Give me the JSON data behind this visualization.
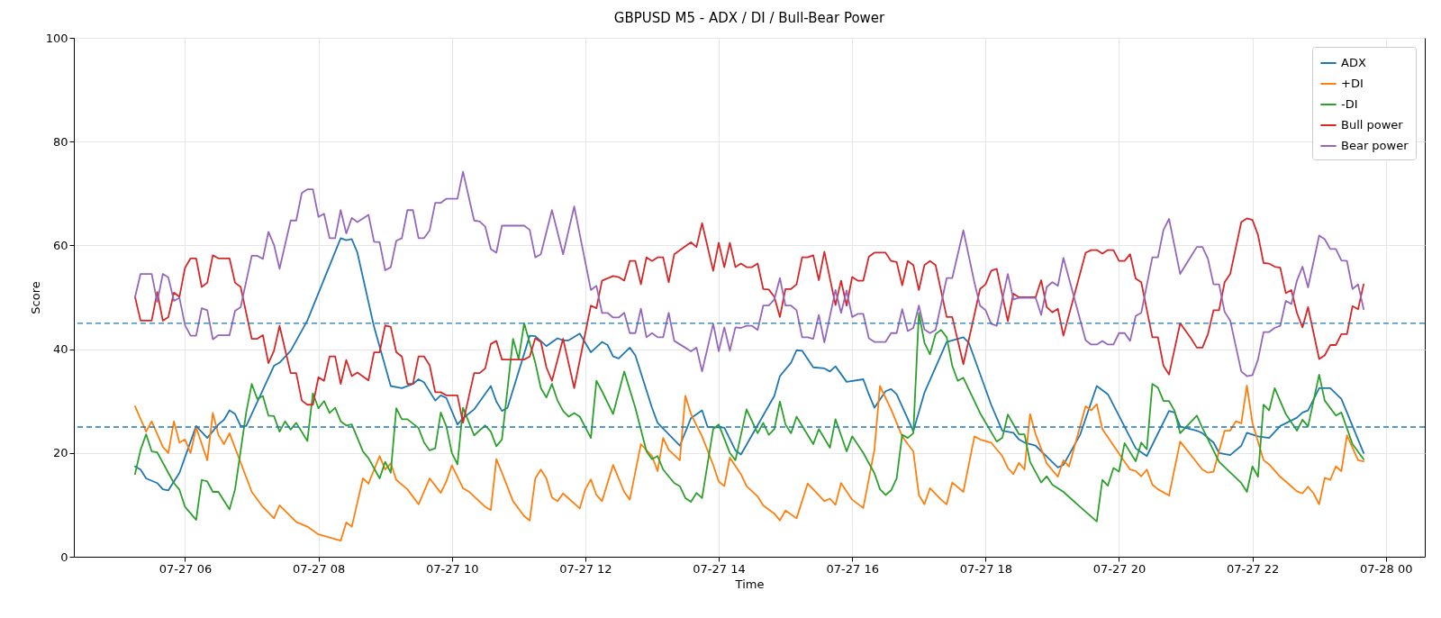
{
  "chart_data": {
    "type": "line",
    "title": "GBPUSD M5 - ADX / DI / Bull-Bear Power",
    "xlabel": "Time",
    "ylabel": "Score",
    "xlim": [
      "--07-27T04:20",
      "--07-28T00:35"
    ],
    "xticks": [
      {
        "value": "--07-27T06:00",
        "label": "07-27 06"
      },
      {
        "value": "--07-27T08:00",
        "label": "07-27 08"
      },
      {
        "value": "--07-27T10:00",
        "label": "07-27 10"
      },
      {
        "value": "--07-27T12:00",
        "label": "07-27 12"
      },
      {
        "value": "--07-27T14:00",
        "label": "07-27 14"
      },
      {
        "value": "--07-27T16:00",
        "label": "07-27 16"
      },
      {
        "value": "--07-27T18:00",
        "label": "07-27 18"
      },
      {
        "value": "--07-27T20:00",
        "label": "07-27 20"
      },
      {
        "value": "--07-27T22:00",
        "label": "07-27 22"
      },
      {
        "value": "--07-28T00:00",
        "label": "07-28 00"
      }
    ],
    "ylim": [
      0,
      100
    ],
    "yticks": [
      0,
      20,
      40,
      60,
      80,
      100
    ],
    "grid": true,
    "legend": "top right",
    "ref_lines": [
      {
        "axis": "y",
        "value": 45,
        "color": "#1f77b4",
        "line_style": "dashed"
      },
      {
        "axis": "y",
        "value": 25,
        "color": "#1f77b4",
        "line_style": "dashed"
      }
    ],
    "series": [
      {
        "name": "ADX",
        "color": "#1f77b4",
        "x": [
          "--07-27T05:15",
          "--07-27T05:20",
          "--07-27T05:25",
          "--07-27T05:35",
          "--07-27T05:40",
          "--07-27T05:45",
          "--07-27T05:55",
          "--07-27T06:10",
          "--07-27T06:20",
          "--07-27T06:30",
          "--07-27T06:35",
          "--07-27T06:40",
          "--07-27T06:45",
          "--07-27T06:50",
          "--07-27T06:55",
          "--07-27T07:20",
          "--07-27T07:25",
          "--07-27T07:35",
          "--07-27T07:50",
          "--07-27T08:20",
          "--07-27T08:25",
          "--07-27T08:30",
          "--07-27T08:35",
          "--07-27T08:50",
          "--07-27T09:05",
          "--07-27T09:15",
          "--07-27T09:25",
          "--07-27T09:30",
          "--07-27T09:35",
          "--07-27T09:45",
          "--07-27T09:50",
          "--07-27T09:55",
          "--07-27T10:05",
          "--07-27T10:10",
          "--07-27T10:20",
          "--07-27T10:35",
          "--07-27T10:40",
          "--07-27T10:45",
          "--07-27T10:50",
          "--07-27T11:10",
          "--07-27T11:15",
          "--07-27T11:25",
          "--07-27T11:35",
          "--07-27T11:40",
          "--07-27T11:45",
          "--07-27T11:55",
          "--07-27T12:05",
          "--07-27T12:15",
          "--07-27T12:20",
          "--07-27T12:25",
          "--07-27T12:30",
          "--07-27T12:40",
          "--07-27T12:45",
          "--07-27T13:00",
          "--07-27T13:05",
          "--07-27T13:25",
          "--07-27T13:35",
          "--07-27T13:45",
          "--07-27T13:50",
          "--07-27T14:05",
          "--07-27T14:15",
          "--07-27T14:20",
          "--07-27T14:50",
          "--07-27T14:55",
          "--07-27T15:05",
          "--07-27T15:10",
          "--07-27T15:15",
          "--07-27T15:25",
          "--07-27T15:35",
          "--07-27T15:40",
          "--07-27T15:45",
          "--07-27T15:55",
          "--07-27T16:10",
          "--07-27T16:15",
          "--07-27T16:20",
          "--07-27T16:30",
          "--07-27T16:35",
          "--07-27T16:40",
          "--07-27T16:55",
          "--07-27T17:05",
          "--07-27T17:25",
          "--07-27T17:40",
          "--07-27T17:45",
          "--07-27T18:05",
          "--07-27T18:15",
          "--07-27T18:25",
          "--07-27T18:30",
          "--07-27T18:35",
          "--07-27T18:45",
          "--07-27T19:05",
          "--07-27T19:10",
          "--07-27T19:25",
          "--07-27T19:40",
          "--07-27T19:50",
          "--07-27T20:15",
          "--07-27T20:25",
          "--07-27T20:45",
          "--07-27T20:50",
          "--07-27T20:55",
          "--07-27T21:10",
          "--07-27T21:15",
          "--07-27T21:25",
          "--07-27T21:30",
          "--07-27T21:40",
          "--07-27T21:50",
          "--07-27T21:55",
          "--07-27T22:05",
          "--07-27T22:15",
          "--07-27T22:25",
          "--07-27T22:40",
          "--07-27T22:45",
          "--07-27T22:50",
          "--07-27T23:00",
          "--07-27T23:10",
          "--07-27T23:20",
          "--07-27T23:40"
        ],
        "values": [
          17.4,
          16.8,
          15.1,
          14.2,
          13.0,
          12.8,
          16.2,
          25.2,
          22.9,
          25.5,
          26.4,
          28.2,
          27.5,
          25.2,
          25.2,
          36.8,
          37.4,
          39.7,
          45.5,
          61.4,
          61.0,
          61.2,
          58.6,
          44.3,
          32.9,
          32.5,
          33.3,
          34.2,
          33.6,
          30.1,
          31.1,
          30.6,
          25.5,
          26.7,
          28.4,
          32.9,
          29.9,
          28.1,
          28.7,
          42.6,
          42.5,
          40.6,
          42.1,
          41.7,
          41.7,
          43.0,
          39.4,
          41.4,
          40.8,
          38.6,
          38.2,
          40.3,
          38.8,
          28.7,
          25.8,
          21.4,
          26.7,
          28.2,
          25.0,
          24.9,
          20.5,
          19.7,
          31.0,
          34.8,
          37.4,
          39.8,
          39.7,
          36.5,
          36.3,
          35.7,
          36.7,
          33.7,
          34.2,
          31.3,
          28.7,
          31.9,
          32.3,
          31.3,
          24.2,
          31.6,
          41.4,
          42.3,
          41.2,
          29.3,
          24.3,
          23.9,
          22.6,
          22.0,
          21.4,
          17.2,
          17.7,
          23.5,
          32.9,
          31.3,
          20.9,
          19.4,
          28.1,
          27.8,
          25.1,
          24.3,
          23.8,
          22.0,
          20.0,
          19.6,
          21.4,
          23.9,
          23.2,
          22.9,
          25.2,
          26.8,
          27.8,
          28.2,
          32.5,
          32.5,
          30.4,
          20.0
        ]
      },
      {
        "name": "+DI",
        "color": "#ff7f0e",
        "x": [
          "--07-27T05:15",
          "--07-27T05:25",
          "--07-27T05:30",
          "--07-27T05:40",
          "--07-27T05:45",
          "--07-27T05:50",
          "--07-27T05:55",
          "--07-27T06:00",
          "--07-27T06:05",
          "--07-27T06:10",
          "--07-27T06:20",
          "--07-27T06:25",
          "--07-27T06:30",
          "--07-27T06:35",
          "--07-27T06:40",
          "--07-27T07:00",
          "--07-27T07:10",
          "--07-27T07:20",
          "--07-27T07:25",
          "--07-27T07:40",
          "--07-27T07:50",
          "--07-27T08:00",
          "--07-27T08:20",
          "--07-27T08:25",
          "--07-27T08:30",
          "--07-27T08:40",
          "--07-27T08:45",
          "--07-27T08:55",
          "--07-27T09:00",
          "--07-27T09:05",
          "--07-27T09:10",
          "--07-27T09:20",
          "--07-27T09:30",
          "--07-27T09:40",
          "--07-27T09:50",
          "--07-27T09:55",
          "--07-27T10:00",
          "--07-27T10:10",
          "--07-27T10:15",
          "--07-27T10:30",
          "--07-27T10:35",
          "--07-27T10:40",
          "--07-27T10:45",
          "--07-27T10:55",
          "--07-27T11:05",
          "--07-27T11:10",
          "--07-27T11:15",
          "--07-27T11:20",
          "--07-27T11:25",
          "--07-27T11:30",
          "--07-27T11:35",
          "--07-27T11:40",
          "--07-27T11:55",
          "--07-27T12:00",
          "--07-27T12:05",
          "--07-27T12:10",
          "--07-27T12:15",
          "--07-27T12:25",
          "--07-27T12:35",
          "--07-27T12:40",
          "--07-27T12:50",
          "--07-27T13:00",
          "--07-27T13:05",
          "--07-27T13:10",
          "--07-27T13:15",
          "--07-27T13:25",
          "--07-27T13:30",
          "--07-27T13:35",
          "--07-27T13:45",
          "--07-27T13:55",
          "--07-27T14:00",
          "--07-27T14:05",
          "--07-27T14:10",
          "--07-27T14:20",
          "--07-27T14:25",
          "--07-27T14:35",
          "--07-27T14:40",
          "--07-27T14:50",
          "--07-27T14:55",
          "--07-27T15:00",
          "--07-27T15:10",
          "--07-27T15:20",
          "--07-27T15:25",
          "--07-27T15:35",
          "--07-27T15:40",
          "--07-27T15:45",
          "--07-27T15:50",
          "--07-27T16:00",
          "--07-27T16:10",
          "--07-27T16:20",
          "--07-27T16:25",
          "--07-27T16:35",
          "--07-27T16:45",
          "--07-27T16:50",
          "--07-27T16:55",
          "--07-27T17:00",
          "--07-27T17:05",
          "--07-27T17:10",
          "--07-27T17:20",
          "--07-27T17:25",
          "--07-27T17:30",
          "--07-27T17:40",
          "--07-27T17:50",
          "--07-27T17:55",
          "--07-27T18:05",
          "--07-27T18:15",
          "--07-27T18:20",
          "--07-27T18:25",
          "--07-27T18:30",
          "--07-27T18:35",
          "--07-27T18:40",
          "--07-27T18:45",
          "--07-27T18:55",
          "--07-27T19:05",
          "--07-27T19:10",
          "--07-27T19:15",
          "--07-27T19:30",
          "--07-27T19:35",
          "--07-27T19:40",
          "--07-27T19:45",
          "--07-27T20:05",
          "--07-27T20:10",
          "--07-27T20:15",
          "--07-27T20:20",
          "--07-27T20:25",
          "--07-27T20:30",
          "--07-27T20:35",
          "--07-27T20:45",
          "--07-27T20:55",
          "--07-27T21:15",
          "--07-27T21:20",
          "--07-27T21:25",
          "--07-27T21:35",
          "--07-27T21:40",
          "--07-27T21:45",
          "--07-27T21:50",
          "--07-27T21:55",
          "--07-27T22:00",
          "--07-27T22:10",
          "--07-27T22:15",
          "--07-27T22:25",
          "--07-27T22:30",
          "--07-27T22:40",
          "--07-27T22:45",
          "--07-27T22:50",
          "--07-27T22:55",
          "--07-27T23:00",
          "--07-27T23:05",
          "--07-27T23:10",
          "--07-27T23:15",
          "--07-27T23:20",
          "--07-27T23:25",
          "--07-27T23:35",
          "--07-27T23:40"
        ],
        "values": [
          29.0,
          24.1,
          26.1,
          21.2,
          20.0,
          26.1,
          22.0,
          22.6,
          20.0,
          24.9,
          18.6,
          27.7,
          23.5,
          21.7,
          23.8,
          12.5,
          9.6,
          7.4,
          9.9,
          6.7,
          5.8,
          4.3,
          3.1,
          6.6,
          5.8,
          15.1,
          14.1,
          19.4,
          16.8,
          18.0,
          14.8,
          13.0,
          10.1,
          15.1,
          12.3,
          14.5,
          17.6,
          13.2,
          12.6,
          9.6,
          9.0,
          18.8,
          16.2,
          10.7,
          7.8,
          7.0,
          15.1,
          16.8,
          15.1,
          11.4,
          10.7,
          12.2,
          9.3,
          13.0,
          14.9,
          11.9,
          10.7,
          17.7,
          12.5,
          11.0,
          21.7,
          19.4,
          16.5,
          22.9,
          20.6,
          18.6,
          31.0,
          27.5,
          23.2,
          17.7,
          14.5,
          13.6,
          19.1,
          15.9,
          13.6,
          11.6,
          9.9,
          8.3,
          7.0,
          8.9,
          7.4,
          14.1,
          13.0,
          10.7,
          11.2,
          10.0,
          14.2,
          11.0,
          9.4,
          20.6,
          32.9,
          28.4,
          23.2,
          21.7,
          20.3,
          11.9,
          10.1,
          13.2,
          11.0,
          10.1,
          14.3,
          12.5,
          23.2,
          22.6,
          22.0,
          19.4,
          17.1,
          15.9,
          18.1,
          16.8,
          27.5,
          23.6,
          18.0,
          15.4,
          18.6,
          17.4,
          29.0,
          28.2,
          29.4,
          24.6,
          18.3,
          16.8,
          16.5,
          15.5,
          16.8,
          13.9,
          13.0,
          11.8,
          22.2,
          16.8,
          16.2,
          16.4,
          24.3,
          24.3,
          26.1,
          25.7,
          33.0,
          25.8,
          18.6,
          17.8,
          15.4,
          14.5,
          12.6,
          12.2,
          13.5,
          12.2,
          10.1,
          15.2,
          14.8,
          17.4,
          16.5,
          23.4,
          18.6,
          18.4
        ]
      },
      {
        "name": "-DI",
        "color": "#2ca02c",
        "x": [
          "--07-27T05:15",
          "--07-27T05:20",
          "--07-27T05:25",
          "--07-27T05:30",
          "--07-27T05:35",
          "--07-27T05:50",
          "--07-27T05:55",
          "--07-27T06:00",
          "--07-27T06:10",
          "--07-27T06:15",
          "--07-27T06:20",
          "--07-27T06:25",
          "--07-27T06:30",
          "--07-27T06:40",
          "--07-27T06:45",
          "--07-27T06:55",
          "--07-27T07:00",
          "--07-27T07:05",
          "--07-27T07:10",
          "--07-27T07:15",
          "--07-27T07:20",
          "--07-27T07:25",
          "--07-27T07:30",
          "--07-27T07:35",
          "--07-27T07:40",
          "--07-27T07:50",
          "--07-27T07:55",
          "--07-27T08:00",
          "--07-27T08:05",
          "--07-27T08:10",
          "--07-27T08:15",
          "--07-27T08:20",
          "--07-27T08:25",
          "--07-27T08:30",
          "--07-27T08:40",
          "--07-27T08:45",
          "--07-27T08:55",
          "--07-27T09:00",
          "--07-27T09:05",
          "--07-27T09:10",
          "--07-27T09:15",
          "--07-27T09:20",
          "--07-27T09:30",
          "--07-27T09:35",
          "--07-27T09:40",
          "--07-27T09:45",
          "--07-27T09:50",
          "--07-27T09:55",
          "--07-27T10:00",
          "--07-27T10:05",
          "--07-27T10:10",
          "--07-27T10:20",
          "--07-27T10:30",
          "--07-27T10:35",
          "--07-27T10:40",
          "--07-27T10:45",
          "--07-27T10:55",
          "--07-27T11:00",
          "--07-27T11:05",
          "--07-27T11:15",
          "--07-27T11:20",
          "--07-27T11:25",
          "--07-27T11:30",
          "--07-27T11:35",
          "--07-27T11:40",
          "--07-27T11:45",
          "--07-27T11:50",
          "--07-27T11:55",
          "--07-27T12:05",
          "--07-27T12:10",
          "--07-27T12:15",
          "--07-27T12:25",
          "--07-27T12:35",
          "--07-27T12:45",
          "--07-27T12:55",
          "--07-27T13:00",
          "--07-27T13:05",
          "--07-27T13:10",
          "--07-27T13:20",
          "--07-27T13:25",
          "--07-27T13:30",
          "--07-27T13:35",
          "--07-27T13:40",
          "--07-27T13:45",
          "--07-27T13:55",
          "--07-27T14:00",
          "--07-27T14:10",
          "--07-27T14:15",
          "--07-27T14:25",
          "--07-27T14:35",
          "--07-27T14:40",
          "--07-27T14:45",
          "--07-27T14:50",
          "--07-27T14:55",
          "--07-27T15:00",
          "--07-27T15:05",
          "--07-27T15:10",
          "--07-27T15:25",
          "--07-27T15:30",
          "--07-27T15:40",
          "--07-27T15:45",
          "--07-27T15:55",
          "--07-27T16:00",
          "--07-27T16:10",
          "--07-27T16:20",
          "--07-27T16:25",
          "--07-27T16:30",
          "--07-27T16:35",
          "--07-27T16:40",
          "--07-27T16:45",
          "--07-27T16:50",
          "--07-27T16:55",
          "--07-27T17:00",
          "--07-27T17:05",
          "--07-27T17:10",
          "--07-27T17:15",
          "--07-27T17:20",
          "--07-27T17:25",
          "--07-27T17:30",
          "--07-27T17:35",
          "--07-27T17:40",
          "--07-27T17:55",
          "--07-27T18:10",
          "--07-27T18:15",
          "--07-27T18:20",
          "--07-27T18:30",
          "--07-27T18:35",
          "--07-27T18:40",
          "--07-27T18:50",
          "--07-27T18:55",
          "--07-27T19:00",
          "--07-27T19:10",
          "--07-27T19:25",
          "--07-27T19:40",
          "--07-27T19:45",
          "--07-27T19:50",
          "--07-27T19:55",
          "--07-27T20:00",
          "--07-27T20:05",
          "--07-27T20:15",
          "--07-27T20:20",
          "--07-27T20:25",
          "--07-27T20:30",
          "--07-27T20:35",
          "--07-27T20:40",
          "--07-27T20:45",
          "--07-27T20:50",
          "--07-27T20:55",
          "--07-27T21:10",
          "--07-27T21:15",
          "--07-27T21:30",
          "--07-27T21:50",
          "--07-27T21:55",
          "--07-27T22:00",
          "--07-27T22:05",
          "--07-27T22:10",
          "--07-27T22:15",
          "--07-27T22:20",
          "--07-27T22:30",
          "--07-27T22:40",
          "--07-27T22:45",
          "--07-27T22:50",
          "--07-27T23:00",
          "--07-27T23:05",
          "--07-27T23:15",
          "--07-27T23:20",
          "--07-27T23:30",
          "--07-27T23:40"
        ],
        "values": [
          15.9,
          20.6,
          23.6,
          20.3,
          20.1,
          14.2,
          12.9,
          9.6,
          7.1,
          14.8,
          14.5,
          12.5,
          12.5,
          9.1,
          13.0,
          27.8,
          33.3,
          30.4,
          31.0,
          27.2,
          27.1,
          24.1,
          26.1,
          24.5,
          25.8,
          22.3,
          31.5,
          28.6,
          30.0,
          27.7,
          28.7,
          26.1,
          25.3,
          25.5,
          20.3,
          19.0,
          15.1,
          18.3,
          16.2,
          28.6,
          26.5,
          26.5,
          24.8,
          22.0,
          20.5,
          20.9,
          27.8,
          25.1,
          20.0,
          17.8,
          28.7,
          23.4,
          25.3,
          24.1,
          21.3,
          22.6,
          42.0,
          38.1,
          45.0,
          37.4,
          32.5,
          30.7,
          33.3,
          30.1,
          28.1,
          27.0,
          27.7,
          27.0,
          22.9,
          33.9,
          31.9,
          27.5,
          35.7,
          28.7,
          20.3,
          18.8,
          19.4,
          16.8,
          14.2,
          13.6,
          11.3,
          10.6,
          12.3,
          11.3,
          24.6,
          25.5,
          20.0,
          18.6,
          28.4,
          23.8,
          25.8,
          23.5,
          24.6,
          29.9,
          25.5,
          23.8,
          27.0,
          21.7,
          24.6,
          21.0,
          26.5,
          20.3,
          23.2,
          20.0,
          16.1,
          13.0,
          11.9,
          12.8,
          15.1,
          23.5,
          22.9,
          23.8,
          47.0,
          41.2,
          39.0,
          42.9,
          43.7,
          42.3,
          36.8,
          33.9,
          34.5,
          27.7,
          22.2,
          22.9,
          27.4,
          23.6,
          23.6,
          18.3,
          14.3,
          15.5,
          13.9,
          12.5,
          9.6,
          6.8,
          14.8,
          13.7,
          17.1,
          16.4,
          21.9,
          18.4,
          22.0,
          20.7,
          33.3,
          32.6,
          30.0,
          30.0,
          28.1,
          23.8,
          27.2,
          24.8,
          18.3,
          14.2,
          12.5,
          17.4,
          15.4,
          29.3,
          28.2,
          32.5,
          27.5,
          24.3,
          26.4,
          25.1,
          35.1,
          30.1,
          27.2,
          27.8,
          21.7,
          18.8
        ]
      },
      {
        "name": "Bull power",
        "color": "#d62728",
        "x": [
          "--07-27T05:15",
          "--07-27T05:20",
          "--07-27T05:30",
          "--07-27T05:35",
          "--07-27T05:40",
          "--07-27T05:45",
          "--07-27T05:50",
          "--07-27T05:55",
          "--07-27T06:00",
          "--07-27T06:05",
          "--07-27T06:10",
          "--07-27T06:15",
          "--07-27T06:20",
          "--07-27T06:25",
          "--07-27T06:30",
          "--07-27T06:40",
          "--07-27T06:45",
          "--07-27T06:50",
          "--07-27T07:00",
          "--07-27T07:05",
          "--07-27T07:10",
          "--07-27T07:15",
          "--07-27T07:20",
          "--07-27T07:25",
          "--07-27T07:35",
          "--07-27T07:40",
          "--07-27T07:45",
          "--07-27T07:50",
          "--07-27T07:55",
          "--07-27T08:00",
          "--07-27T08:05",
          "--07-27T08:10",
          "--07-27T08:15",
          "--07-27T08:20",
          "--07-27T08:25",
          "--07-27T08:30",
          "--07-27T08:35",
          "--07-27T08:45",
          "--07-27T08:50",
          "--07-27T08:55",
          "--07-27T09:00",
          "--07-27T09:05",
          "--07-27T09:10",
          "--07-27T09:15",
          "--07-27T09:20",
          "--07-27T09:25",
          "--07-27T09:30",
          "--07-27T09:35",
          "--07-27T09:40",
          "--07-27T09:45",
          "--07-27T09:50",
          "--07-27T09:55",
          "--07-27T10:05",
          "--07-27T10:10",
          "--07-27T10:20",
          "--07-27T10:25",
          "--07-27T10:30",
          "--07-27T10:35",
          "--07-27T10:40",
          "--07-27T10:45",
          "--07-27T10:55",
          "--07-27T11:05",
          "--07-27T11:10",
          "--07-27T11:15",
          "--07-27T11:20",
          "--07-27T11:25",
          "--07-27T11:30",
          "--07-27T11:40",
          "--07-27T11:50",
          "--07-27T12:05",
          "--07-27T12:10",
          "--07-27T12:15",
          "--07-27T12:25",
          "--07-27T12:30",
          "--07-27T12:35",
          "--07-27T12:40",
          "--07-27T12:45",
          "--07-27T12:50",
          "--07-27T12:55",
          "--07-27T13:00",
          "--07-27T13:05",
          "--07-27T13:10",
          "--07-27T13:15",
          "--07-27T13:20",
          "--07-27T13:35",
          "--07-27T13:40",
          "--07-27T13:45",
          "--07-27T13:55",
          "--07-27T14:00",
          "--07-27T14:05",
          "--07-27T14:10",
          "--07-27T14:15",
          "--07-27T14:20",
          "--07-27T14:25",
          "--07-27T14:30",
          "--07-27T14:35",
          "--07-27T14:40",
          "--07-27T14:45",
          "--07-27T14:50",
          "--07-27T14:55",
          "--07-27T15:00",
          "--07-27T15:05",
          "--07-27T15:10",
          "--07-27T15:15",
          "--07-27T15:20",
          "--07-27T15:25",
          "--07-27T15:30",
          "--07-27T15:35",
          "--07-27T15:45",
          "--07-27T15:50",
          "--07-27T15:55",
          "--07-27T16:00",
          "--07-27T16:05",
          "--07-27T16:10",
          "--07-27T16:15",
          "--07-27T16:20",
          "--07-27T16:30",
          "--07-27T16:35",
          "--07-27T16:40",
          "--07-27T16:45",
          "--07-27T16:50",
          "--07-27T16:55",
          "--07-27T17:00",
          "--07-27T17:05",
          "--07-27T17:10",
          "--07-27T17:15",
          "--07-27T17:25",
          "--07-27T17:30",
          "--07-27T17:40",
          "--07-27T17:50",
          "--07-27T17:55",
          "--07-27T18:00",
          "--07-27T18:05",
          "--07-27T18:10",
          "--07-27T18:20",
          "--07-27T18:25",
          "--07-27T18:30",
          "--07-27T18:45",
          "--07-27T18:50",
          "--07-27T18:55",
          "--07-27T19:00",
          "--07-27T19:05",
          "--07-27T19:10",
          "--07-27T19:30",
          "--07-27T19:35",
          "--07-27T19:40",
          "--07-27T19:45",
          "--07-27T19:50",
          "--07-27T19:55",
          "--07-27T20:00",
          "--07-27T20:05",
          "--07-27T20:10",
          "--07-27T20:15",
          "--07-27T20:20",
          "--07-27T20:30",
          "--07-27T20:35",
          "--07-27T20:40",
          "--07-27T20:45",
          "--07-27T20:55",
          "--07-27T21:05",
          "--07-27T21:10",
          "--07-27T21:15",
          "--07-27T21:20",
          "--07-27T21:25",
          "--07-27T21:30",
          "--07-27T21:35",
          "--07-27T21:40",
          "--07-27T21:50",
          "--07-27T21:55",
          "--07-27T22:00",
          "--07-27T22:05",
          "--07-27T22:10",
          "--07-27T22:15",
          "--07-27T22:20",
          "--07-27T22:25",
          "--07-27T22:30",
          "--07-27T22:35",
          "--07-27T22:40",
          "--07-27T22:45",
          "--07-27T22:50",
          "--07-27T23:00",
          "--07-27T23:05",
          "--07-27T23:10",
          "--07-27T23:15",
          "--07-27T23:20",
          "--07-27T23:25",
          "--07-27T23:30",
          "--07-27T23:35",
          "--07-27T23:40"
        ],
        "values": [
          50.1,
          45.5,
          45.5,
          51.0,
          45.5,
          46.2,
          50.9,
          50.1,
          55.7,
          57.5,
          57.5,
          52.0,
          52.8,
          58.1,
          57.5,
          57.5,
          52.8,
          52.0,
          42.0,
          42.0,
          42.7,
          37.3,
          39.7,
          44.5,
          35.4,
          35.4,
          30.1,
          29.3,
          29.3,
          34.6,
          33.9,
          38.6,
          38.6,
          33.3,
          37.9,
          34.8,
          35.5,
          34.0,
          39.4,
          39.4,
          44.6,
          44.3,
          39.4,
          38.6,
          33.3,
          33.3,
          38.6,
          38.6,
          36.9,
          31.7,
          31.7,
          31.1,
          31.1,
          25.8,
          35.4,
          35.4,
          36.3,
          41.0,
          41.6,
          38.0,
          38.0,
          38.0,
          38.6,
          42.1,
          41.4,
          36.5,
          33.9,
          42.0,
          32.5,
          48.4,
          47.9,
          53.2,
          54.1,
          53.9,
          53.2,
          57.0,
          57.0,
          52.5,
          57.7,
          57.0,
          57.7,
          57.7,
          52.9,
          58.3,
          60.6,
          59.7,
          64.3,
          55.1,
          60.5,
          55.8,
          60.5,
          55.8,
          56.5,
          55.8,
          55.8,
          56.5,
          51.6,
          51.5,
          50.1,
          46.2,
          51.6,
          51.6,
          52.5,
          57.7,
          57.7,
          58.1,
          53.3,
          58.8,
          48.5,
          53.2,
          48.4,
          53.9,
          53.2,
          53.2,
          57.8,
          58.6,
          58.6,
          57.0,
          56.8,
          52.3,
          57.0,
          56.2,
          51.4,
          56.2,
          57.0,
          56.2,
          46.2,
          46.2,
          37.1,
          46.7,
          51.6,
          52.5,
          55.1,
          55.5,
          45.4,
          50.7,
          50.0,
          50.0,
          53.3,
          48.1,
          47.1,
          47.8,
          42.6,
          58.6,
          59.1,
          59.1,
          58.4,
          59.1,
          59.1,
          57.0,
          57.0,
          58.3,
          53.6,
          52.9,
          42.3,
          42.3,
          36.8,
          35.1,
          45.0,
          42.0,
          40.3,
          40.3,
          42.9,
          47.5,
          47.5,
          52.9,
          54.5,
          64.5,
          65.2,
          64.9,
          62.0,
          56.6,
          56.5,
          55.9,
          55.7,
          50.8,
          51.4,
          47.0,
          44.2,
          48.1,
          38.1,
          38.8,
          40.8,
          40.8,
          42.9,
          42.9,
          48.3,
          47.7,
          52.5
        ]
      },
      {
        "name": "Bear power",
        "color": "#9467bd",
        "x": [
          "--07-27T05:15",
          "--07-27T05:20",
          "--07-27T05:30",
          "--07-27T05:35",
          "--07-27T05:40",
          "--07-27T05:45",
          "--07-27T05:50",
          "--07-27T05:55",
          "--07-27T06:00",
          "--07-27T06:05",
          "--07-27T06:10",
          "--07-27T06:15",
          "--07-27T06:20",
          "--07-27T06:25",
          "--07-27T06:30",
          "--07-27T06:40",
          "--07-27T06:45",
          "--07-27T06:50",
          "--07-27T07:00",
          "--07-27T07:05",
          "--07-27T07:10",
          "--07-27T07:15",
          "--07-27T07:20",
          "--07-27T07:25",
          "--07-27T07:35",
          "--07-27T07:40",
          "--07-27T07:45",
          "--07-27T07:50",
          "--07-27T07:55",
          "--07-27T08:00",
          "--07-27T08:05",
          "--07-27T08:10",
          "--07-27T08:15",
          "--07-27T08:20",
          "--07-27T08:25",
          "--07-27T08:30",
          "--07-27T08:35",
          "--07-27T08:45",
          "--07-27T08:50",
          "--07-27T08:55",
          "--07-27T09:00",
          "--07-27T09:05",
          "--07-27T09:10",
          "--07-27T09:15",
          "--07-27T09:20",
          "--07-27T09:25",
          "--07-27T09:30",
          "--07-27T09:35",
          "--07-27T09:40",
          "--07-27T09:45",
          "--07-27T09:50",
          "--07-27T09:55",
          "--07-27T10:05",
          "--07-27T10:10",
          "--07-27T10:20",
          "--07-27T10:25",
          "--07-27T10:30",
          "--07-27T10:35",
          "--07-27T10:40",
          "--07-27T10:45",
          "--07-27T11:05",
          "--07-27T11:10",
          "--07-27T11:15",
          "--07-27T11:20",
          "--07-27T11:30",
          "--07-27T11:40",
          "--07-27T11:50",
          "--07-27T12:05",
          "--07-27T12:10",
          "--07-27T12:15",
          "--07-27T12:20",
          "--07-27T12:25",
          "--07-27T12:30",
          "--07-27T12:35",
          "--07-27T12:40",
          "--07-27T12:45",
          "--07-27T12:50",
          "--07-27T12:55",
          "--07-27T13:00",
          "--07-27T13:05",
          "--07-27T13:10",
          "--07-27T13:15",
          "--07-27T13:20",
          "--07-27T13:35",
          "--07-27T13:40",
          "--07-27T13:45",
          "--07-27T13:55",
          "--07-27T14:00",
          "--07-27T14:05",
          "--07-27T14:10",
          "--07-27T14:15",
          "--07-27T14:20",
          "--07-27T14:25",
          "--07-27T14:30",
          "--07-27T14:35",
          "--07-27T14:40",
          "--07-27T14:45",
          "--07-27T14:50",
          "--07-27T14:55",
          "--07-27T15:00",
          "--07-27T15:05",
          "--07-27T15:10",
          "--07-27T15:15",
          "--07-27T15:20",
          "--07-27T15:25",
          "--07-27T15:30",
          "--07-27T15:35",
          "--07-27T15:45",
          "--07-27T15:50",
          "--07-27T15:55",
          "--07-27T16:00",
          "--07-27T16:05",
          "--07-27T16:10",
          "--07-27T16:15",
          "--07-27T16:20",
          "--07-27T16:30",
          "--07-27T16:35",
          "--07-27T16:40",
          "--07-27T16:45",
          "--07-27T16:50",
          "--07-27T16:55",
          "--07-27T17:00",
          "--07-27T17:05",
          "--07-27T17:10",
          "--07-27T17:15",
          "--07-27T17:25",
          "--07-27T17:30",
          "--07-27T17:40",
          "--07-27T17:50",
          "--07-27T17:55",
          "--07-27T18:00",
          "--07-27T18:05",
          "--07-27T18:10",
          "--07-27T18:20",
          "--07-27T18:25",
          "--07-27T18:30",
          "--07-27T18:45",
          "--07-27T18:50",
          "--07-27T18:55",
          "--07-27T19:00",
          "--07-27T19:05",
          "--07-27T19:10",
          "--07-27T19:30",
          "--07-27T19:35",
          "--07-27T19:40",
          "--07-27T19:45",
          "--07-27T19:50",
          "--07-27T19:55",
          "--07-27T20:00",
          "--07-27T20:05",
          "--07-27T20:10",
          "--07-27T20:15",
          "--07-27T20:20",
          "--07-27T20:30",
          "--07-27T20:35",
          "--07-27T20:40",
          "--07-27T20:45",
          "--07-27T20:55",
          "--07-27T21:05",
          "--07-27T21:10",
          "--07-27T21:15",
          "--07-27T21:20",
          "--07-27T21:25",
          "--07-27T21:30",
          "--07-27T21:35",
          "--07-27T21:40",
          "--07-27T21:50",
          "--07-27T21:55",
          "--07-27T22:00",
          "--07-27T22:05",
          "--07-27T22:10",
          "--07-27T22:15",
          "--07-27T22:20",
          "--07-27T22:25",
          "--07-27T22:30",
          "--07-27T22:35",
          "--07-27T22:40",
          "--07-27T22:45",
          "--07-27T22:50",
          "--07-27T23:00",
          "--07-27T23:05",
          "--07-27T23:10",
          "--07-27T23:15",
          "--07-27T23:20",
          "--07-27T23:25",
          "--07-27T23:30",
          "--07-27T23:35",
          "--07-27T23:40"
        ],
        "values": [
          50.0,
          54.5,
          54.5,
          49.1,
          54.5,
          53.8,
          49.3,
          49.9,
          44.6,
          42.6,
          42.6,
          47.9,
          47.5,
          41.9,
          42.7,
          42.7,
          47.4,
          48.1,
          58.0,
          58.0,
          57.4,
          62.6,
          60.1,
          55.5,
          64.8,
          64.8,
          70.1,
          70.8,
          70.8,
          65.5,
          66.1,
          61.4,
          61.4,
          66.8,
          62.3,
          65.3,
          64.5,
          65.9,
          60.7,
          60.6,
          55.2,
          55.8,
          60.9,
          61.4,
          66.8,
          66.8,
          61.4,
          61.4,
          62.9,
          68.2,
          68.2,
          69.0,
          69.0,
          74.2,
          64.8,
          64.6,
          63.6,
          59.3,
          58.6,
          63.8,
          63.8,
          63.0,
          57.7,
          58.3,
          66.8,
          58.3,
          67.5,
          51.4,
          52.2,
          47.0,
          47.0,
          46.1,
          46.1,
          47.0,
          43.1,
          43.1,
          47.8,
          42.3,
          43.1,
          42.3,
          42.3,
          47.0,
          41.6,
          39.6,
          40.3,
          35.7,
          44.9,
          39.6,
          44.2,
          39.7,
          44.2,
          44.1,
          44.5,
          44.5,
          43.7,
          48.4,
          48.4,
          49.6,
          53.7,
          48.4,
          48.4,
          47.5,
          42.3,
          42.3,
          42.0,
          46.6,
          41.3,
          51.4,
          47.0,
          51.3,
          46.2,
          46.8,
          46.8,
          42.1,
          41.4,
          41.4,
          43.1,
          43.1,
          47.7,
          43.5,
          44.1,
          48.4,
          43.8,
          43.1,
          43.7,
          53.7,
          53.7,
          62.9,
          52.8,
          48.4,
          47.5,
          44.9,
          44.5,
          54.5,
          49.6,
          49.9,
          49.9,
          46.6,
          52.0,
          52.9,
          52.2,
          57.6,
          41.7,
          40.9,
          40.9,
          41.6,
          40.9,
          40.9,
          43.1,
          43.1,
          41.6,
          46.4,
          47.0,
          57.7,
          57.7,
          63.0,
          65.1,
          54.5,
          58.0,
          59.7,
          59.7,
          57.4,
          52.5,
          52.5,
          47.2,
          45.5,
          35.7,
          34.8,
          35.0,
          38.0,
          43.3,
          43.3,
          44.1,
          44.5,
          49.3,
          48.7,
          53.2,
          55.9,
          51.9,
          61.9,
          61.2,
          59.3,
          59.3,
          57.1,
          57.0,
          51.6,
          52.5,
          47.7
        ]
      }
    ]
  }
}
